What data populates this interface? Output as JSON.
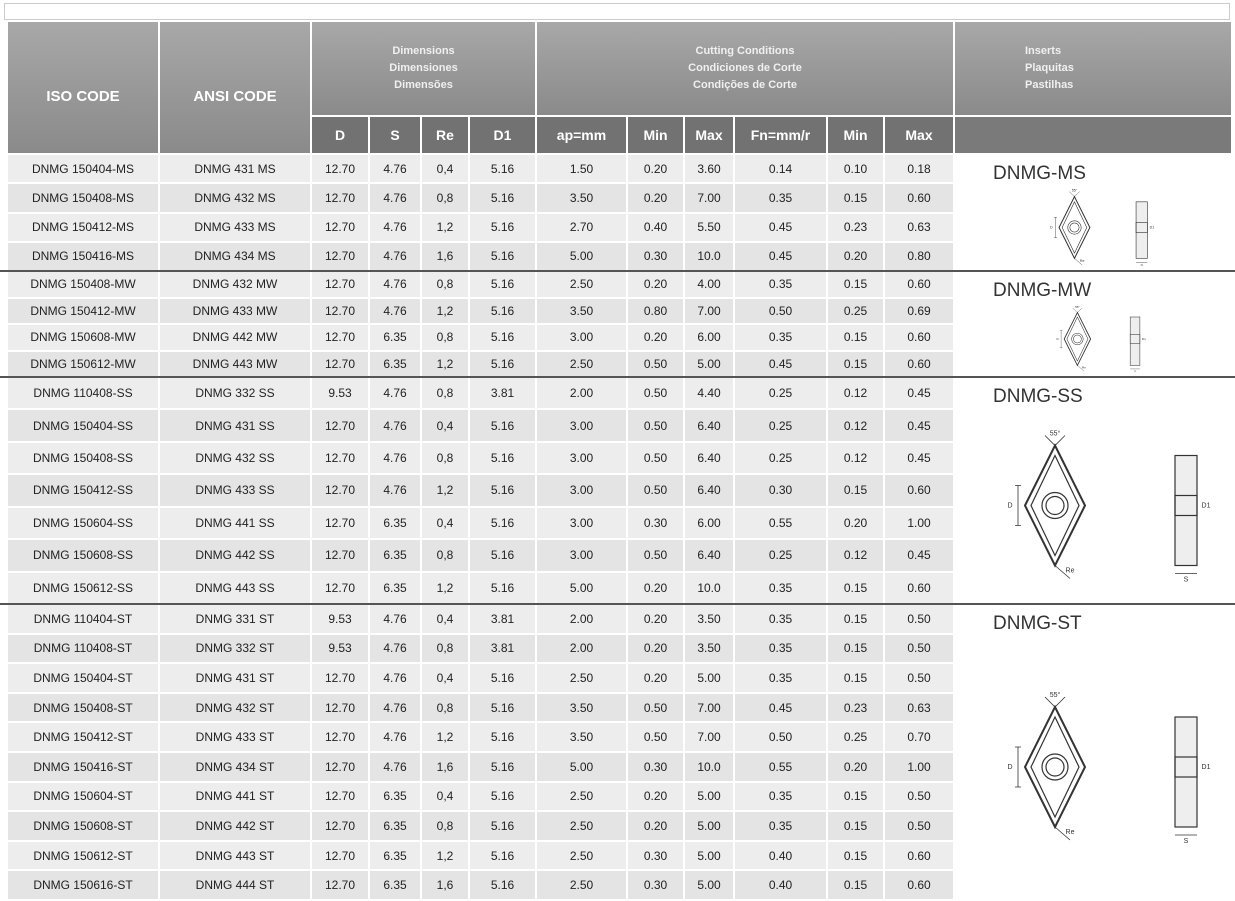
{
  "header": {
    "iso": "ISO CODE",
    "ansi": "ANSI CODE",
    "dimensions": [
      "Dimensions",
      "Dimensiones",
      "Dimensões"
    ],
    "cutting": [
      "Cutting Conditions",
      "Condiciones de Corte",
      "Condições de Corte"
    ],
    "inserts": [
      "Inserts",
      "Plaquitas",
      "Pastilhas"
    ],
    "columns": [
      "D",
      "S",
      "Re",
      "D1",
      "ap=mm",
      "Min",
      "Max",
      "Fn=mm/r",
      "Min",
      "Max"
    ]
  },
  "groups": [
    {
      "name": "DNMG-MS",
      "labels": [
        "55°",
        "D",
        "D1",
        "Re",
        "S"
      ],
      "rows": [
        [
          "DNMG 150404-MS",
          "DNMG 431 MS",
          "12.70",
          "4.76",
          "0,4",
          "5.16",
          "1.50",
          "0.20",
          "3.60",
          "0.14",
          "0.10",
          "0.18"
        ],
        [
          "DNMG 150408-MS",
          "DNMG 432 MS",
          "12.70",
          "4.76",
          "0,8",
          "5.16",
          "3.50",
          "0.20",
          "7.00",
          "0.35",
          "0.15",
          "0.60"
        ],
        [
          "DNMG 150412-MS",
          "DNMG 433 MS",
          "12.70",
          "4.76",
          "1,2",
          "5.16",
          "2.70",
          "0.40",
          "5.50",
          "0.45",
          "0.23",
          "0.63"
        ],
        [
          "DNMG 150416-MS",
          "DNMG 434 MS",
          "12.70",
          "4.76",
          "1,6",
          "5.16",
          "5.00",
          "0.30",
          "10.0",
          "0.45",
          "0.20",
          "0.80"
        ]
      ]
    },
    {
      "name": "DNMG-MW",
      "labels": [
        "55°",
        "D",
        "D1",
        "Re",
        "S"
      ],
      "rows": [
        [
          "DNMG 150408-MW",
          "DNMG 432 MW",
          "12.70",
          "4.76",
          "0,8",
          "5.16",
          "2.50",
          "0.20",
          "4.00",
          "0.35",
          "0.15",
          "0.60"
        ],
        [
          "DNMG 150412-MW",
          "DNMG 433 MW",
          "12.70",
          "4.76",
          "1,2",
          "5.16",
          "3.50",
          "0.80",
          "7.00",
          "0.50",
          "0.25",
          "0.69"
        ],
        [
          "DNMG 150608-MW",
          "DNMG 442 MW",
          "12.70",
          "6.35",
          "0,8",
          "5.16",
          "3.00",
          "0.20",
          "6.00",
          "0.35",
          "0.15",
          "0.60"
        ],
        [
          "DNMG 150612-MW",
          "DNMG 443 MW",
          "12.70",
          "6.35",
          "1,2",
          "5.16",
          "2.50",
          "0.50",
          "5.00",
          "0.45",
          "0.15",
          "0.60"
        ]
      ]
    },
    {
      "name": "DNMG-SS",
      "labels": [
        "55°",
        "D",
        "D1",
        "Re",
        "S"
      ],
      "rows": [
        [
          "DNMG 110408-SS",
          "DNMG 332 SS",
          "9.53",
          "4.76",
          "0,8",
          "3.81",
          "2.00",
          "0.50",
          "4.40",
          "0.25",
          "0.12",
          "0.45"
        ],
        [
          "DNMG 150404-SS",
          "DNMG 431 SS",
          "12.70",
          "4.76",
          "0,4",
          "5.16",
          "3.00",
          "0.50",
          "6.40",
          "0.25",
          "0.12",
          "0.45"
        ],
        [
          "DNMG 150408-SS",
          "DNMG 432 SS",
          "12.70",
          "4.76",
          "0,8",
          "5.16",
          "3.00",
          "0.50",
          "6.40",
          "0.25",
          "0.12",
          "0.45"
        ],
        [
          "DNMG 150412-SS",
          "DNMG 433 SS",
          "12.70",
          "4.76",
          "1,2",
          "5.16",
          "3.00",
          "0.50",
          "6.40",
          "0.30",
          "0.15",
          "0.60"
        ],
        [
          "DNMG 150604-SS",
          "DNMG 441 SS",
          "12.70",
          "6.35",
          "0,4",
          "5.16",
          "3.00",
          "0.30",
          "6.00",
          "0.55",
          "0.20",
          "1.00"
        ],
        [
          "DNMG 150608-SS",
          "DNMG 442 SS",
          "12.70",
          "6.35",
          "0,8",
          "5.16",
          "3.00",
          "0.50",
          "6.40",
          "0.25",
          "0.12",
          "0.45"
        ],
        [
          "DNMG 150612-SS",
          "DNMG 443 SS",
          "12.70",
          "6.35",
          "1,2",
          "5.16",
          "5.00",
          "0.20",
          "10.0",
          "0.35",
          "0.15",
          "0.60"
        ]
      ]
    },
    {
      "name": "DNMG-ST",
      "labels": [
        "55°",
        "D",
        "D1",
        "Re",
        "S"
      ],
      "rows": [
        [
          "DNMG 110404-ST",
          "DNMG 331 ST",
          "9.53",
          "4.76",
          "0,4",
          "3.81",
          "2.00",
          "0.20",
          "3.50",
          "0.35",
          "0.15",
          "0.50"
        ],
        [
          "DNMG 110408-ST",
          "DNMG 332 ST",
          "9.53",
          "4.76",
          "0,8",
          "3.81",
          "2.00",
          "0.20",
          "3.50",
          "0.35",
          "0.15",
          "0.50"
        ],
        [
          "DNMG 150404-ST",
          "DNMG 431 ST",
          "12.70",
          "4.76",
          "0,4",
          "5.16",
          "2.50",
          "0.20",
          "5.00",
          "0.35",
          "0.15",
          "0.50"
        ],
        [
          "DNMG 150408-ST",
          "DNMG 432 ST",
          "12.70",
          "4.76",
          "0,8",
          "5.16",
          "3.50",
          "0.50",
          "7.00",
          "0.45",
          "0.23",
          "0.63"
        ],
        [
          "DNMG 150412-ST",
          "DNMG 433 ST",
          "12.70",
          "4.76",
          "1,2",
          "5.16",
          "3.50",
          "0.50",
          "7.00",
          "0.50",
          "0.25",
          "0.70"
        ],
        [
          "DNMG 150416-ST",
          "DNMG 434 ST",
          "12.70",
          "4.76",
          "1,6",
          "5.16",
          "5.00",
          "0.30",
          "10.0",
          "0.55",
          "0.20",
          "1.00"
        ],
        [
          "DNMG 150604-ST",
          "DNMG 441 ST",
          "12.70",
          "6.35",
          "0,4",
          "5.16",
          "2.50",
          "0.20",
          "5.00",
          "0.35",
          "0.15",
          "0.50"
        ],
        [
          "DNMG 150608-ST",
          "DNMG 442 ST",
          "12.70",
          "6.35",
          "0,8",
          "5.16",
          "2.50",
          "0.20",
          "5.00",
          "0.35",
          "0.15",
          "0.50"
        ],
        [
          "DNMG 150612-ST",
          "DNMG 443 ST",
          "12.70",
          "6.35",
          "1,2",
          "5.16",
          "2.50",
          "0.30",
          "5.00",
          "0.40",
          "0.15",
          "0.60"
        ],
        [
          "DNMG 150616-ST",
          "DNMG 444 ST",
          "12.70",
          "6.35",
          "1,6",
          "5.16",
          "2.50",
          "0.30",
          "5.00",
          "0.40",
          "0.15",
          "0.60"
        ]
      ]
    }
  ]
}
